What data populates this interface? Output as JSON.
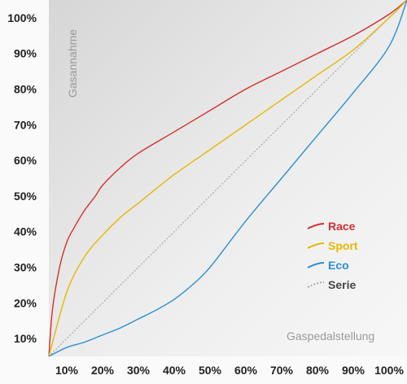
{
  "chart_data": {
    "type": "line",
    "title": "",
    "xlabel": "Gaspedalstellung",
    "ylabel": "Gasannahme",
    "xlim": [
      5,
      105
    ],
    "ylim": [
      5,
      105
    ],
    "x_ticks": [
      "10%",
      "20%",
      "30%",
      "40%",
      "50%",
      "60%",
      "70%",
      "80%",
      "90%",
      "100%"
    ],
    "y_ticks": [
      "10%",
      "20%",
      "30%",
      "40%",
      "50%",
      "60%",
      "70%",
      "80%",
      "90%",
      "100%"
    ],
    "legend_position": "right",
    "series": [
      {
        "name": "Race",
        "color": "#d32f2f",
        "style": "solid",
        "x": [
          5,
          6,
          8,
          10,
          12,
          15,
          18,
          20,
          25,
          30,
          40,
          50,
          60,
          70,
          80,
          90,
          100,
          105
        ],
        "y": [
          5,
          18,
          30,
          37,
          41,
          46,
          50,
          53,
          58,
          62,
          68,
          74,
          80,
          85,
          90,
          95,
          101,
          105
        ]
      },
      {
        "name": "Sport",
        "color": "#e6b800",
        "style": "solid",
        "x": [
          5,
          10,
          15,
          20,
          25,
          30,
          40,
          50,
          60,
          70,
          80,
          90,
          100,
          105
        ],
        "y": [
          5,
          23,
          33,
          39,
          44,
          48,
          56,
          63,
          70,
          77,
          84,
          91,
          100,
          105
        ]
      },
      {
        "name": "Eco",
        "color": "#2b8fd6",
        "style": "solid",
        "x": [
          5,
          10,
          15,
          20,
          25,
          30,
          35,
          40,
          45,
          50,
          60,
          70,
          80,
          90,
          100,
          105
        ],
        "y": [
          5,
          7.5,
          9,
          11,
          13,
          15.5,
          18,
          21,
          25,
          30,
          43,
          55,
          67,
          79,
          92,
          105
        ]
      },
      {
        "name": "Serie",
        "color": "#aaaaaa",
        "style": "dotted",
        "x": [
          5,
          105
        ],
        "y": [
          5,
          105
        ]
      }
    ]
  }
}
